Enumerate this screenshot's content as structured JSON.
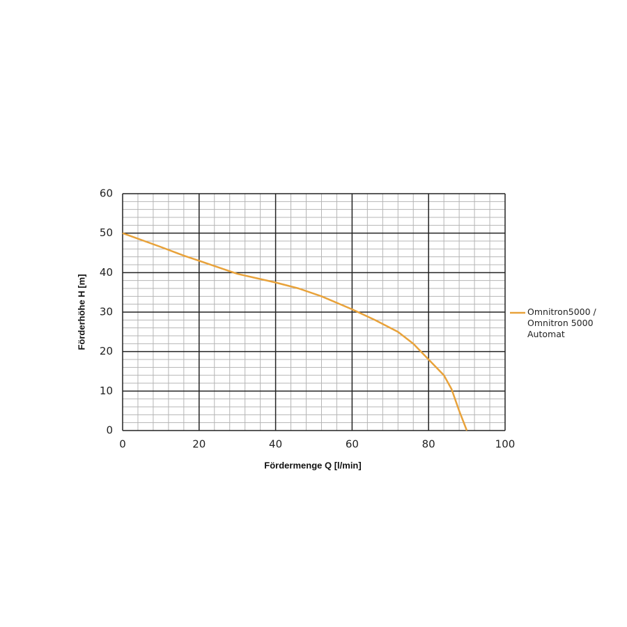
{
  "chart_data": {
    "type": "line",
    "x_label": "Fördermenge Q [l/min]",
    "y_label": "Förderhöhe H [m]",
    "x": [
      0,
      10,
      16,
      20,
      30,
      40,
      46,
      52,
      60,
      66,
      72,
      76,
      80,
      84,
      86,
      88,
      90
    ],
    "series": [
      {
        "name": "Omnitron5000 / Omnitron 5000 Automat",
        "color": "#e8a23a",
        "values": [
          50,
          46.5,
          44.3,
          43,
          39.7,
          37.5,
          36,
          34,
          30.7,
          28,
          25,
          22,
          18,
          14,
          10.5,
          5,
          0
        ]
      }
    ],
    "xlim": [
      0,
      100
    ],
    "xticks": [
      0,
      20,
      40,
      60,
      80,
      100
    ],
    "ylim": [
      0,
      60
    ],
    "yticks": [
      0,
      10,
      20,
      30,
      40,
      50,
      60
    ],
    "grid": true,
    "minor_grid_divisions": 5,
    "legend": "right"
  }
}
